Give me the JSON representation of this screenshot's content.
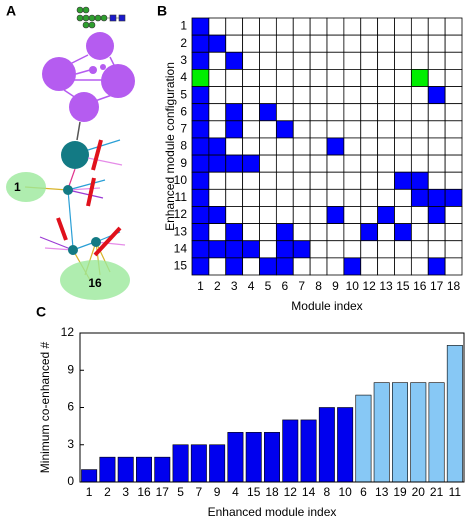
{
  "diagram": {
    "panel": "A",
    "labels": [
      "1",
      "16"
    ]
  },
  "chart_data": [
    {
      "type": "grid",
      "panel": "B",
      "xlabel": "Module index",
      "ylabel": "Enhanced module configuration",
      "rows": [
        "1",
        "2",
        "3",
        "4",
        "5",
        "6",
        "7",
        "8",
        "9",
        "10",
        "11",
        "12",
        "13",
        "14",
        "15"
      ],
      "columns": [
        "1",
        "2",
        "3",
        "4",
        "5",
        "6",
        "7",
        "8",
        "9",
        "10",
        "12",
        "13",
        "15",
        "16",
        "17",
        "18"
      ],
      "colors": [
        "#ffffff",
        "#0000ff",
        "#00ee00"
      ],
      "values": [
        [
          1,
          0,
          0,
          0,
          0,
          0,
          0,
          0,
          0,
          0,
          0,
          0,
          0,
          0,
          0,
          0
        ],
        [
          1,
          1,
          0,
          0,
          0,
          0,
          0,
          0,
          0,
          0,
          0,
          0,
          0,
          0,
          0,
          0
        ],
        [
          1,
          0,
          1,
          0,
          0,
          0,
          0,
          0,
          0,
          0,
          0,
          0,
          0,
          0,
          0,
          0
        ],
        [
          2,
          0,
          0,
          0,
          0,
          0,
          0,
          0,
          0,
          0,
          0,
          0,
          0,
          2,
          0,
          0
        ],
        [
          1,
          0,
          0,
          0,
          0,
          0,
          0,
          0,
          0,
          0,
          0,
          0,
          0,
          0,
          1,
          0
        ],
        [
          1,
          0,
          1,
          0,
          1,
          0,
          0,
          0,
          0,
          0,
          0,
          0,
          0,
          0,
          0,
          0
        ],
        [
          1,
          0,
          1,
          0,
          0,
          1,
          0,
          0,
          0,
          0,
          0,
          0,
          0,
          0,
          0,
          0
        ],
        [
          1,
          1,
          0,
          0,
          0,
          0,
          0,
          0,
          1,
          0,
          0,
          0,
          0,
          0,
          0,
          0
        ],
        [
          1,
          1,
          1,
          1,
          0,
          0,
          0,
          0,
          0,
          0,
          0,
          0,
          0,
          0,
          0,
          0
        ],
        [
          1,
          0,
          0,
          0,
          0,
          0,
          0,
          0,
          0,
          0,
          0,
          0,
          1,
          1,
          0,
          0
        ],
        [
          1,
          0,
          0,
          0,
          0,
          0,
          0,
          0,
          0,
          0,
          0,
          0,
          0,
          1,
          1,
          1
        ],
        [
          1,
          1,
          0,
          0,
          0,
          0,
          0,
          0,
          1,
          0,
          0,
          1,
          0,
          0,
          1,
          0
        ],
        [
          1,
          0,
          1,
          0,
          0,
          1,
          0,
          0,
          0,
          0,
          1,
          0,
          1,
          0,
          0,
          0
        ],
        [
          1,
          1,
          1,
          1,
          0,
          1,
          1,
          0,
          0,
          0,
          0,
          0,
          0,
          0,
          0,
          0
        ],
        [
          1,
          0,
          1,
          0,
          1,
          1,
          0,
          0,
          0,
          1,
          0,
          0,
          0,
          0,
          1,
          0
        ]
      ]
    },
    {
      "type": "bar",
      "panel": "C",
      "xlabel": "Enhanced module index",
      "ylabel": "Minimum co-enhanced #",
      "categories": [
        "1",
        "2",
        "3",
        "16",
        "17",
        "5",
        "7",
        "9",
        "4",
        "15",
        "18",
        "12",
        "14",
        "8",
        "10",
        "6",
        "13",
        "19",
        "20",
        "21",
        "11"
      ],
      "values": [
        1,
        2,
        2,
        2,
        2,
        3,
        3,
        3,
        4,
        4,
        4,
        5,
        5,
        6,
        6,
        7,
        8,
        8,
        8,
        8,
        11
      ],
      "colors": [
        "#0000ee",
        "#0000ee",
        "#0000ee",
        "#0000ee",
        "#0000ee",
        "#0000ee",
        "#0000ee",
        "#0000ee",
        "#0000ee",
        "#0000ee",
        "#0000ee",
        "#0000ee",
        "#0000ee",
        "#0000ee",
        "#0000ee",
        "#87c8f5",
        "#87c8f5",
        "#87c8f5",
        "#87c8f5",
        "#87c8f5",
        "#87c8f5"
      ],
      "ylim": [
        0,
        12
      ],
      "yticks": [
        0,
        3,
        6,
        9,
        12
      ]
    }
  ]
}
